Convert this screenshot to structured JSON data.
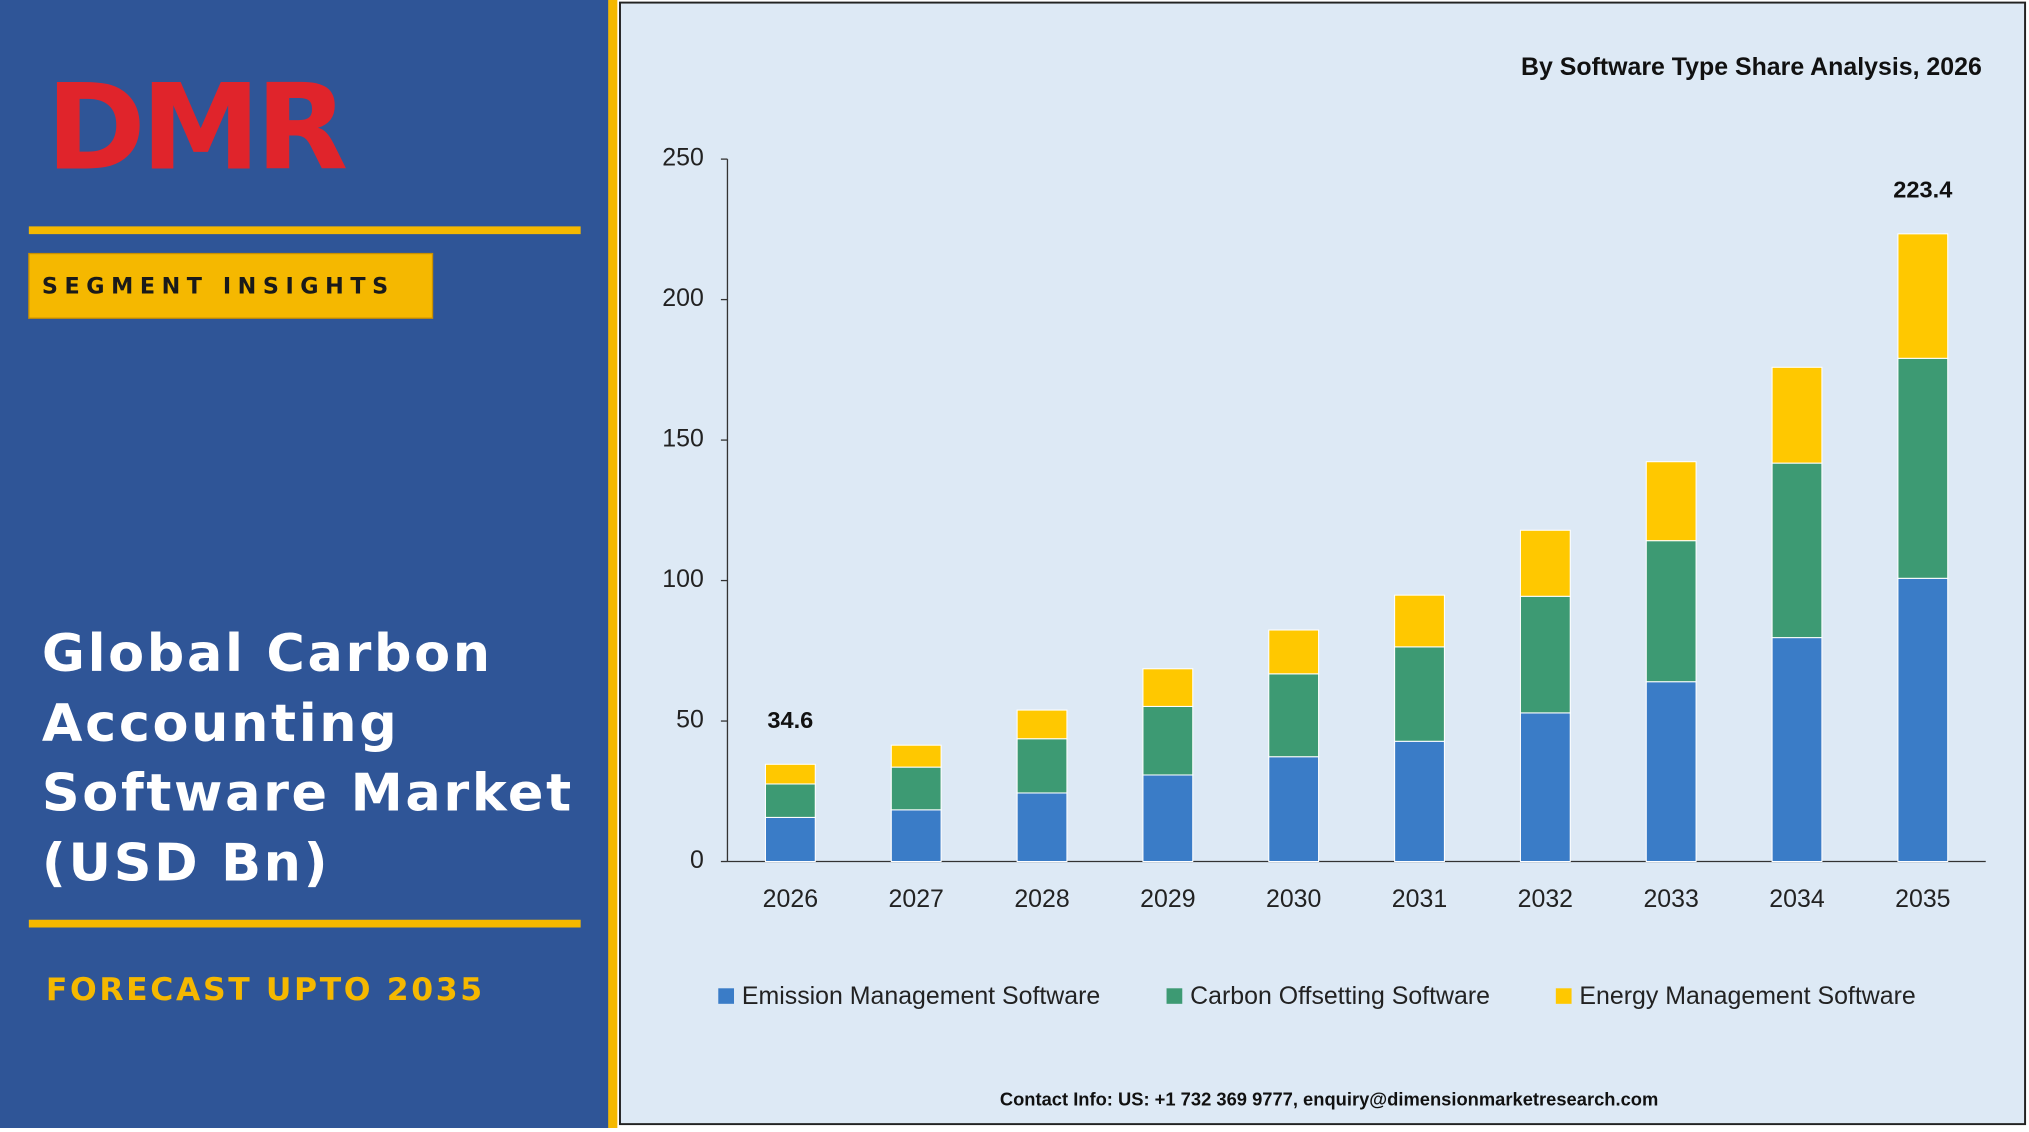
{
  "logo": "DMR",
  "badge": "SEGMENT INSIGHTS",
  "headline": [
    "Global Carbon",
    "Accounting",
    "Software Market",
    "(USD Bn)"
  ],
  "forecast": "FORECAST UPTO 2035",
  "contact": "Contact Info: US: +1 732 369 9777, enquiry@dimensionmarketresearch.com",
  "chart_data": {
    "type": "stacked-bar",
    "title": "By Software Type Share Analysis, 2026",
    "categories": [
      "2026",
      "2027",
      "2028",
      "2029",
      "2030",
      "2031",
      "2032",
      "2033",
      "2034",
      "2035"
    ],
    "series": [
      {
        "name": "Emission Management Software",
        "color": "#3a7cc7",
        "values": [
          15.7,
          18.4,
          24.4,
          30.8,
          37.3,
          42.8,
          52.9,
          64.0,
          79.7,
          100.8
        ]
      },
      {
        "name": "Carbon Offsetting Software",
        "color": "#3d9a73",
        "values": [
          11.9,
          15.2,
          19.3,
          24.4,
          29.5,
          33.6,
          41.5,
          50.2,
          62.1,
          78.3
        ]
      },
      {
        "name": "Energy Management Software",
        "color": "#ffc800",
        "values": [
          7.0,
          7.8,
          10.2,
          13.4,
          15.6,
          18.4,
          23.5,
          28.1,
          34.1,
          44.3
        ]
      }
    ],
    "total_labels": [
      34.6,
      null,
      null,
      null,
      null,
      null,
      null,
      null,
      null,
      223.4
    ],
    "ylim": [
      0,
      250
    ],
    "yticks": [
      0,
      50,
      100,
      150,
      200,
      250
    ],
    "legend": "bottom"
  }
}
